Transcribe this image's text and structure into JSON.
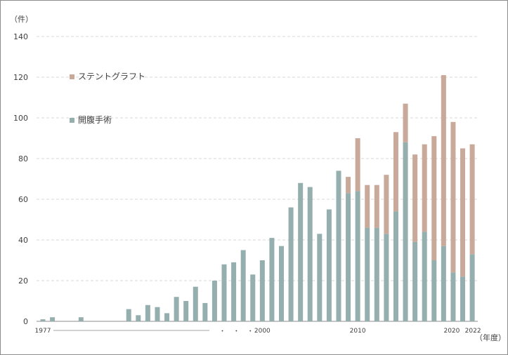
{
  "chart_data": {
    "type": "bar",
    "stacked": true,
    "ylabel": "（件）",
    "xlabel": "（年度）",
    "ylim": [
      0,
      140
    ],
    "yticks": [
      0,
      20,
      40,
      60,
      80,
      100,
      120,
      140
    ],
    "grid": true,
    "legend_position": "top-left",
    "x": [
      1977,
      1978,
      1979,
      1980,
      1981,
      1982,
      1983,
      1984,
      1985,
      1986,
      1987,
      1988,
      1989,
      1990,
      1991,
      1992,
      1993,
      1994,
      1995,
      1996,
      1997,
      1998,
      1999,
      2000,
      2001,
      2002,
      2003,
      2004,
      2005,
      2006,
      2007,
      2008,
      2009,
      2010,
      2011,
      2012,
      2013,
      2014,
      2015,
      2016,
      2017,
      2018,
      2019,
      2020,
      2021,
      2022
    ],
    "x_tick_labels": [
      {
        "x": 1977,
        "label": "1977"
      },
      {
        "x": 2000,
        "label": "2000"
      },
      {
        "x": 2010,
        "label": "2010"
      },
      {
        "x": 2020,
        "label": "2020"
      },
      {
        "x": 2022,
        "label": "2022"
      }
    ],
    "axis_break_marks": "・ ・ ・",
    "series": [
      {
        "name": "開腹手術",
        "color": "#95afae",
        "values": [
          1,
          2,
          0,
          0,
          2,
          0,
          0,
          0,
          0,
          6,
          3,
          8,
          7,
          4,
          12,
          10,
          17,
          9,
          20,
          28,
          29,
          35,
          23,
          30,
          41,
          37,
          56,
          68,
          66,
          43,
          55,
          74,
          63,
          64,
          46,
          46,
          43,
          54,
          88,
          39,
          44,
          30,
          37,
          24,
          22,
          33
        ]
      },
      {
        "name": "ステントグラフト",
        "color": "#c9a999",
        "values": [
          0,
          0,
          0,
          0,
          0,
          0,
          0,
          0,
          0,
          0,
          0,
          0,
          0,
          0,
          0,
          0,
          0,
          0,
          0,
          0,
          0,
          0,
          0,
          0,
          0,
          0,
          0,
          0,
          0,
          0,
          0,
          0,
          8,
          26,
          21,
          21,
          29,
          39,
          19,
          43,
          43,
          61,
          84,
          74,
          63,
          54
        ]
      }
    ]
  },
  "colors": {
    "axis": "#8c8c8c",
    "grid": "#d9d9d9",
    "text": "#404040"
  }
}
